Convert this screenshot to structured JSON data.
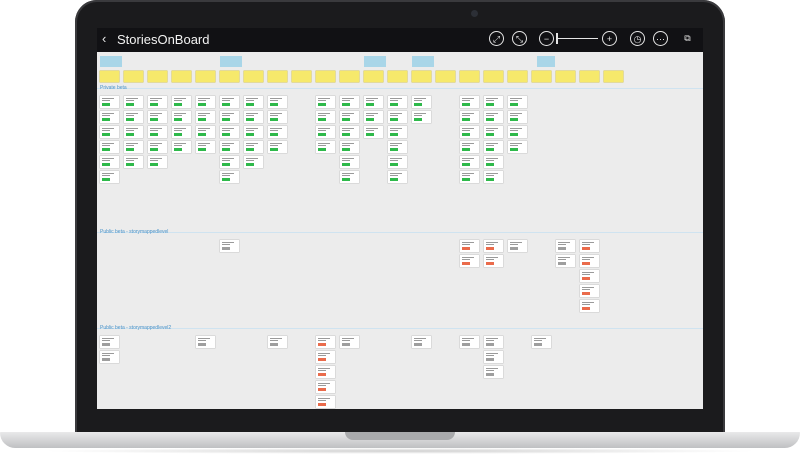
{
  "app": {
    "title": "StoriesOnBoard",
    "icons": {
      "back": "back-arrow-icon",
      "collapse": "collapse-icon",
      "expand": "expand-icon",
      "zoom_out": "zoom-out-icon",
      "zoom_in": "zoom-in-icon",
      "history": "history-icon",
      "more": "more-icon",
      "fullscreen": "fullscreen-icon"
    }
  },
  "colors": {
    "topbar": "#111114",
    "board_bg": "#ececec",
    "epic": "#a9d6e8",
    "activity": "#f6e96b",
    "release_label": "#4a93c9",
    "tag_green": "#2eb94a",
    "tag_red": "#ea6b4b",
    "tag_gray": "#9e9e9e"
  },
  "releases": [
    {
      "label": "Private beta"
    },
    {
      "label": "Public beta - storymappedlevel"
    },
    {
      "label": "Public beta - storymappedlevel2"
    }
  ]
}
